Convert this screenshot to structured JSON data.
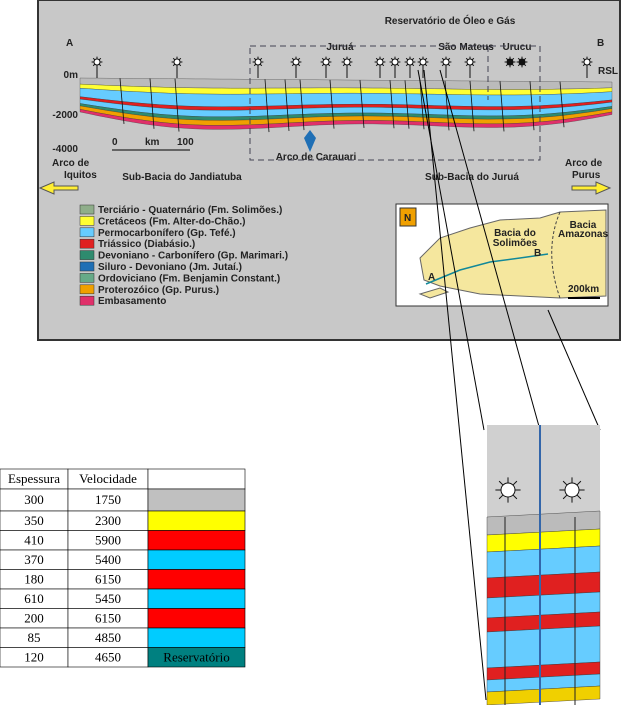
{
  "header": {
    "title": "Reservatório de Óleo e Gás",
    "point_a": "A",
    "point_b": "B",
    "rsl": "RSL"
  },
  "fields": [
    "Juruá",
    "São Mateus",
    "Urucu"
  ],
  "depth_labels": [
    "0m",
    "-2000",
    "-4000"
  ],
  "scale": [
    "0",
    "km",
    "100"
  ],
  "arches": {
    "iquitos": [
      "Arco de",
      "Iquitos"
    ],
    "carauari": "Arco de Carauari",
    "purus": [
      "Arco de",
      "Purus"
    ]
  },
  "sub_basins": [
    "Sub-Bacia do Jandiatuba",
    "Sub-Bacia do Juruá"
  ],
  "legend": [
    {
      "label": "Terciário - Quaternário (Fm. Solimões.)",
      "color": "#8fae8a"
    },
    {
      "label": "Cretáceos (Fm. Alter-do-Chão.)",
      "color": "#ffff33"
    },
    {
      "label": "Permocarbonífero (Gp. Tefé.)",
      "color": "#66ccff"
    },
    {
      "label": "Triássico (Diabásio.)",
      "color": "#e02020"
    },
    {
      "label": "Devoniano - Carbonífero (Gp. Marimari.)",
      "color": "#2e8b6e"
    },
    {
      "label": "Siluro - Devoniano (Jm. Jutaí.)",
      "color": "#1f6fb5"
    },
    {
      "label": "Ordoviciano (Fm. Benjamin Constant.)",
      "color": "#66aa88"
    },
    {
      "label": "Proterozóico (Gp. Purus.)",
      "color": "#f0a000"
    },
    {
      "label": "Embasamento",
      "color": "#e0306a"
    }
  ],
  "inset": {
    "north": "N",
    "solimoes": [
      "Bacia do",
      "Solimões"
    ],
    "amazonas": [
      "Bacia",
      "Amazonas"
    ],
    "a": "A",
    "b": "B",
    "scale": "200km"
  },
  "table": {
    "columns": [
      "Espessura",
      "Velocidade"
    ],
    "rows": [
      {
        "thickness": 300,
        "velocity": 1750,
        "color": "#c0c0c0"
      },
      {
        "thickness": 350,
        "velocity": 2300,
        "color": "#ffff00"
      },
      {
        "thickness": 410,
        "velocity": 5900,
        "color": "#ff0000"
      },
      {
        "thickness": 370,
        "velocity": 5400,
        "color": "#00ccff"
      },
      {
        "thickness": 180,
        "velocity": 6150,
        "color": "#ff0000"
      },
      {
        "thickness": 610,
        "velocity": 5450,
        "color": "#00ccff"
      },
      {
        "thickness": 200,
        "velocity": 6150,
        "color": "#ff0000"
      },
      {
        "thickness": 85,
        "velocity": 4850,
        "color": "#00ccff"
      },
      {
        "thickness": 120,
        "velocity": 4650,
        "color": "#008080",
        "label": "Reservatório"
      }
    ]
  }
}
